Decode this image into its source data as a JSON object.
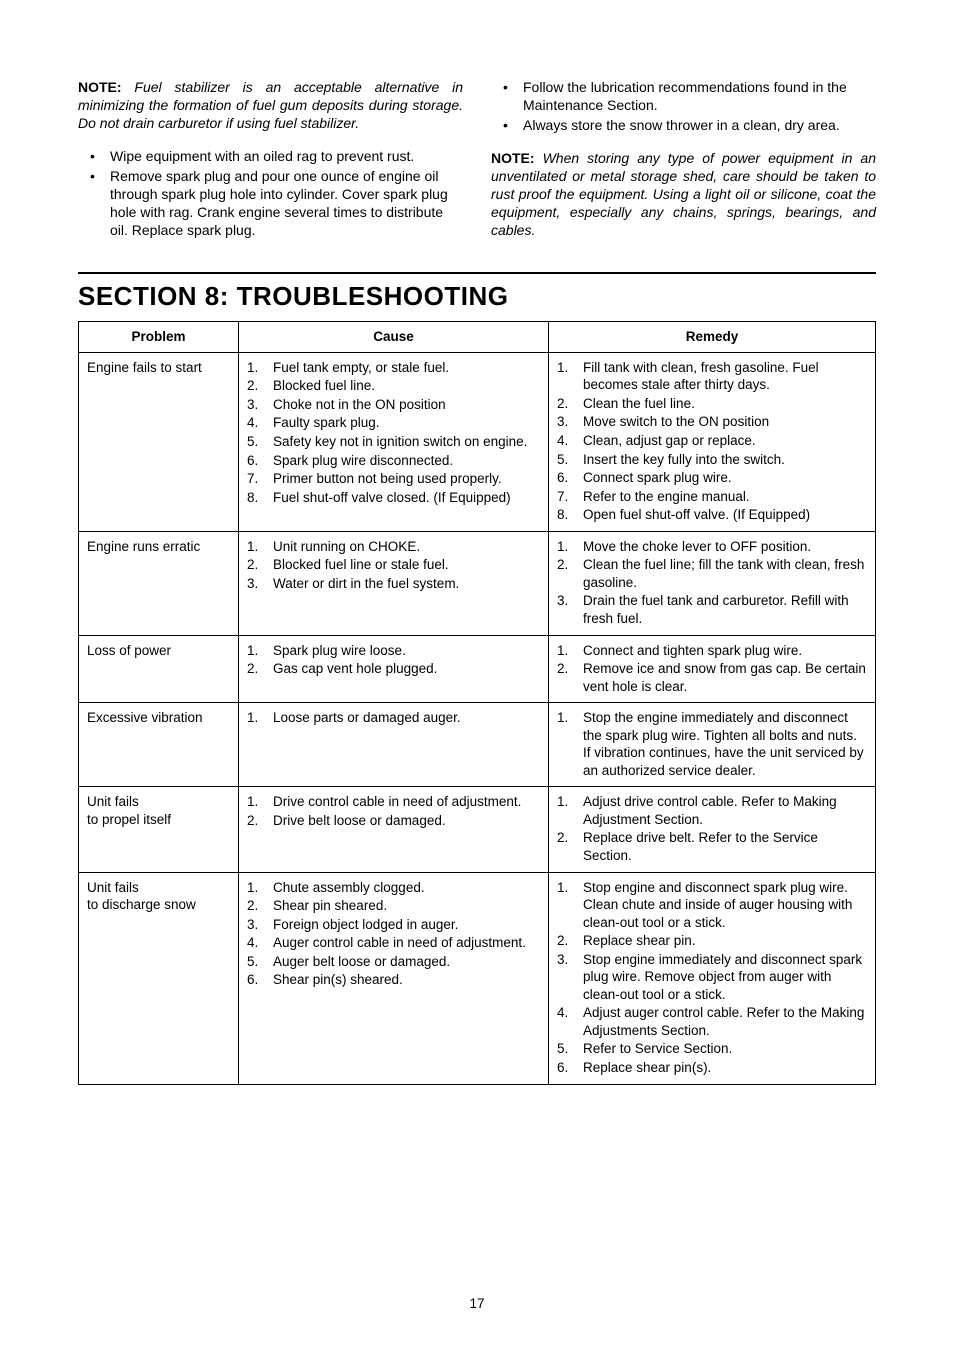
{
  "topLeft": {
    "noteLabel": "NOTE:",
    "noteText": " Fuel stabilizer is an acceptable alternative in minimizing the formation of fuel gum deposits during storage. Do not drain carburetor if using fuel stabilizer.",
    "bullets": [
      "Wipe equipment with an oiled rag to prevent rust.",
      "Remove spark plug and pour one ounce of engine oil through spark plug hole into cylinder. Cover spark plug hole with rag. Crank engine several times to distribute oil. Replace spark plug."
    ]
  },
  "topRight": {
    "bullets": [
      "Follow the lubrication recommendations found in the Maintenance Section.",
      "Always store the snow thrower in a clean, dry area."
    ],
    "noteLabel": "NOTE:",
    "noteText": " When storing any type of power equipment in an unventilated or metal storage shed, care should be taken to rust proof the equipment. Using a light oil or silicone, coat the equipment, especially any chains, springs, bearings, and cables."
  },
  "sectionTitle": "SECTION 8:  TROUBLESHOOTING",
  "headers": {
    "problem": "Problem",
    "cause": "Cause",
    "remedy": "Remedy"
  },
  "rows": [
    {
      "problem": "Engine fails to start",
      "causes": [
        "Fuel tank empty, or stale fuel.",
        "Blocked fuel line.",
        "Choke not in the ON position",
        "Faulty spark plug.",
        "Safety key not in ignition switch on engine.",
        "Spark plug wire disconnected.",
        "Primer button not being used properly.",
        "Fuel shut-off valve closed. (If Equipped)"
      ],
      "remedies": [
        "Fill tank with clean, fresh gasoline. Fuel becomes stale after thirty days.",
        "Clean the fuel line.",
        "Move switch to the ON position",
        "Clean, adjust gap or replace.",
        "Insert the key fully into the switch.",
        "Connect spark plug wire.",
        "Refer to the engine manual.",
        "Open fuel shut-off valve. (If Equipped)"
      ]
    },
    {
      "problem": "Engine runs erratic",
      "causes": [
        "Unit running on CHOKE.",
        "Blocked fuel line or stale fuel.",
        "Water or dirt in the fuel system."
      ],
      "remedies": [
        "Move the choke lever to OFF position.",
        "Clean the fuel line; fill the tank with clean, fresh gasoline.",
        "Drain the fuel tank and carburetor. Refill with fresh fuel."
      ]
    },
    {
      "problem": "Loss of power",
      "causes": [
        "Spark plug wire loose.",
        "Gas cap vent hole plugged."
      ],
      "remedies": [
        "Connect and tighten spark plug wire.",
        "Remove ice and snow from gas cap. Be certain vent hole is clear."
      ]
    },
    {
      "problem": "Excessive vibration",
      "causes": [
        "Loose parts or damaged auger."
      ],
      "remedies": [
        "Stop the engine immediately and disconnect the spark plug wire. Tighten all bolts and nuts. If vibration continues, have the unit serviced by an authorized service dealer."
      ]
    },
    {
      "problem": "Unit fails to propel itself",
      "causes": [
        "Drive control cable in need of adjustment.",
        "Drive belt loose or damaged."
      ],
      "remedies": [
        "Adjust drive control cable. Refer to Making Adjustment Section.",
        "Replace drive belt. Refer to the Service Section."
      ]
    },
    {
      "problem": "Unit fails to discharge snow",
      "causes": [
        "Chute assembly clogged.",
        "Shear pin sheared.",
        "Foreign object lodged in auger.",
        "Auger control cable in need of adjustment.",
        "Auger belt loose or damaged.",
        "Shear pin(s) sheared."
      ],
      "remedies": [
        "Stop engine and disconnect spark plug wire. Clean chute and inside of auger housing with clean-out tool or a stick.",
        "Replace shear pin.",
        "Stop engine immediately and disconnect spark plug wire. Remove object from auger with clean-out tool or a stick.",
        "Adjust auger control cable. Refer to the Making Adjustments Section.",
        "Refer to Service Section.",
        "Replace shear pin(s)."
      ]
    }
  ],
  "pageNumber": "17"
}
